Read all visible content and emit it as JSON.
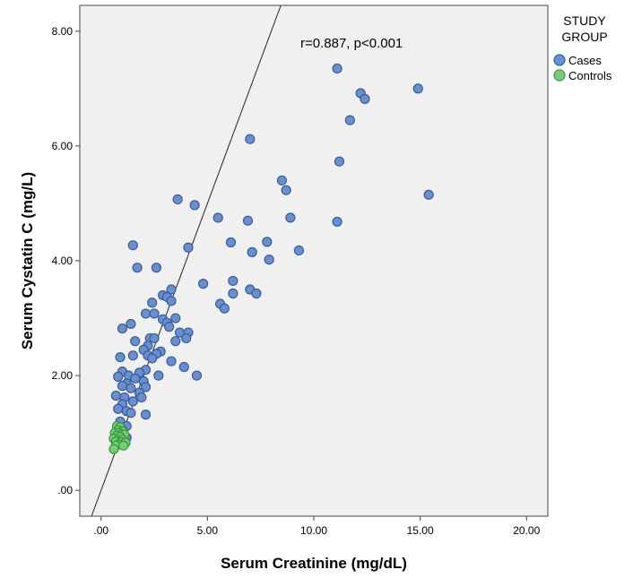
{
  "chart_data": {
    "type": "scatter",
    "xlabel": "Serum Creatinine (mg/dL)",
    "ylabel": "Serum Cystatin C (mg/L)",
    "xlim": [
      -1.0,
      21.0
    ],
    "ylim": [
      -0.45,
      8.45
    ],
    "xticks": [
      0,
      5,
      10,
      15,
      20
    ],
    "xtick_labels": [
      ".00",
      "5.00",
      "10.00",
      "15.00",
      "20.00"
    ],
    "yticks": [
      0,
      2,
      4,
      6,
      8
    ],
    "ytick_labels": [
      ".00",
      "2.00",
      "4.00",
      "6.00",
      "8.00"
    ],
    "reference_line": "y = x",
    "annotation": "r=0.887, p<0.001",
    "background": "#f0f0f0",
    "grid": false,
    "legend": {
      "title_lines": [
        "STUDY",
        "GROUP"
      ],
      "placement": "right"
    },
    "series": [
      {
        "name": "Cases",
        "color": "#6a8fcf",
        "stroke": "#3a5a9c",
        "points": [
          [
            11.1,
            7.35
          ],
          [
            14.9,
            7.0
          ],
          [
            12.2,
            6.92
          ],
          [
            12.4,
            6.82
          ],
          [
            11.7,
            6.45
          ],
          [
            7.0,
            6.12
          ],
          [
            11.2,
            5.73
          ],
          [
            15.4,
            5.15
          ],
          [
            8.5,
            5.4
          ],
          [
            8.7,
            5.23
          ],
          [
            3.6,
            5.07
          ],
          [
            4.4,
            4.97
          ],
          [
            5.5,
            4.75
          ],
          [
            6.9,
            4.7
          ],
          [
            8.9,
            4.75
          ],
          [
            11.1,
            4.68
          ],
          [
            6.1,
            4.32
          ],
          [
            7.8,
            4.33
          ],
          [
            9.3,
            4.18
          ],
          [
            7.1,
            4.15
          ],
          [
            4.1,
            4.23
          ],
          [
            1.5,
            4.27
          ],
          [
            7.9,
            4.02
          ],
          [
            1.7,
            3.88
          ],
          [
            2.6,
            3.88
          ],
          [
            4.8,
            3.6
          ],
          [
            6.2,
            3.65
          ],
          [
            7.0,
            3.5
          ],
          [
            7.3,
            3.43
          ],
          [
            6.2,
            3.43
          ],
          [
            3.3,
            3.5
          ],
          [
            2.9,
            3.4
          ],
          [
            3.1,
            3.37
          ],
          [
            3.3,
            3.3
          ],
          [
            2.4,
            3.27
          ],
          [
            5.6,
            3.25
          ],
          [
            5.8,
            3.17
          ],
          [
            2.1,
            3.08
          ],
          [
            2.5,
            3.08
          ],
          [
            2.9,
            2.98
          ],
          [
            3.5,
            3.0
          ],
          [
            3.1,
            2.92
          ],
          [
            1.4,
            2.9
          ],
          [
            3.2,
            2.85
          ],
          [
            1.0,
            2.82
          ],
          [
            3.7,
            2.75
          ],
          [
            4.1,
            2.75
          ],
          [
            2.3,
            2.65
          ],
          [
            3.5,
            2.6
          ],
          [
            4.0,
            2.65
          ],
          [
            2.5,
            2.65
          ],
          [
            1.6,
            2.6
          ],
          [
            2.2,
            2.52
          ],
          [
            2.0,
            2.45
          ],
          [
            2.8,
            2.42
          ],
          [
            2.6,
            2.38
          ],
          [
            2.2,
            2.35
          ],
          [
            1.5,
            2.35
          ],
          [
            0.9,
            2.32
          ],
          [
            2.4,
            2.3
          ],
          [
            3.3,
            2.25
          ],
          [
            3.9,
            2.15
          ],
          [
            2.1,
            2.1
          ],
          [
            1.0,
            2.07
          ],
          [
            1.8,
            2.05
          ],
          [
            2.7,
            2.0
          ],
          [
            4.5,
            2.0
          ],
          [
            0.8,
            1.98
          ],
          [
            1.3,
            2.0
          ],
          [
            1.6,
            1.95
          ],
          [
            2.0,
            1.9
          ],
          [
            1.2,
            1.86
          ],
          [
            1.0,
            1.82
          ],
          [
            2.1,
            1.8
          ],
          [
            1.4,
            1.78
          ],
          [
            1.8,
            1.7
          ],
          [
            0.7,
            1.65
          ],
          [
            1.1,
            1.62
          ],
          [
            1.9,
            1.62
          ],
          [
            1.5,
            1.55
          ],
          [
            1.0,
            1.5
          ],
          [
            0.8,
            1.42
          ],
          [
            1.2,
            1.38
          ],
          [
            1.4,
            1.35
          ],
          [
            2.1,
            1.32
          ],
          [
            0.9,
            1.2
          ],
          [
            1.2,
            1.12
          ],
          [
            1.0,
            1.05
          ],
          [
            1.2,
            0.92
          ],
          [
            1.1,
            0.85
          ]
        ]
      },
      {
        "name": "Controls",
        "color": "#7cc97c",
        "stroke": "#2f9a3a",
        "points": [
          [
            0.75,
            1.12
          ],
          [
            0.9,
            1.1
          ],
          [
            0.8,
            1.05
          ],
          [
            1.0,
            1.03
          ],
          [
            0.65,
            1.0
          ],
          [
            0.85,
            1.0
          ],
          [
            0.95,
            0.98
          ],
          [
            1.1,
            0.97
          ],
          [
            0.75,
            0.95
          ],
          [
            0.9,
            0.93
          ],
          [
            0.6,
            0.9
          ],
          [
            0.8,
            0.88
          ],
          [
            1.0,
            0.88
          ],
          [
            0.7,
            0.85
          ],
          [
            0.95,
            0.84
          ],
          [
            1.15,
            0.83
          ],
          [
            0.85,
            0.8
          ],
          [
            0.7,
            0.78
          ],
          [
            1.05,
            0.78
          ],
          [
            0.6,
            0.72
          ]
        ]
      }
    ]
  }
}
